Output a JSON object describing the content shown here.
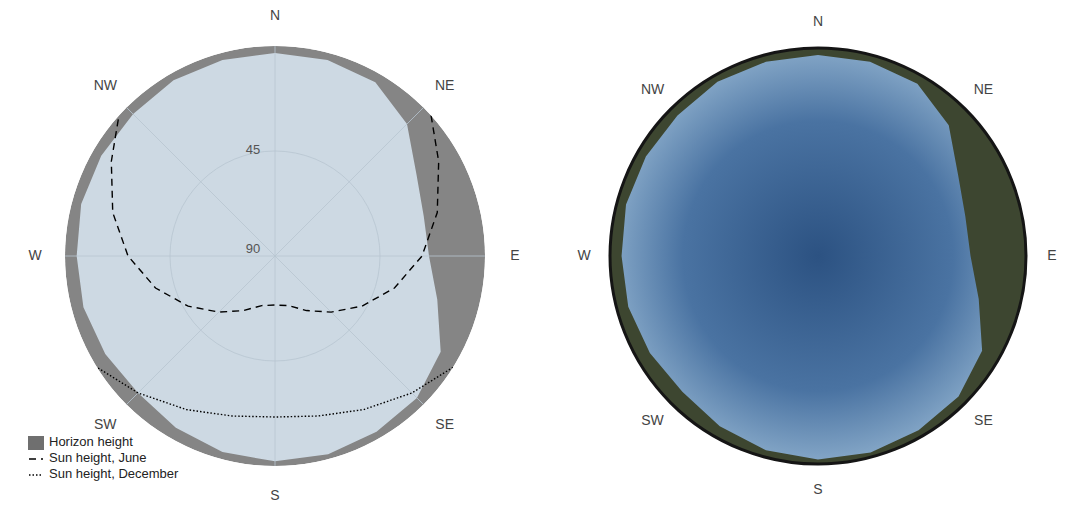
{
  "chart_data": [
    {
      "type": "polar",
      "xlim": [
        0,
        360
      ],
      "xticks": [
        {
          "value": 0,
          "label": "N"
        },
        {
          "value": 45,
          "label": "NE"
        },
        {
          "value": 90,
          "label": "E"
        },
        {
          "value": 135,
          "label": "SE"
        },
        {
          "value": 180,
          "label": "S"
        },
        {
          "value": 225,
          "label": "SW"
        },
        {
          "value": 270,
          "label": "W"
        },
        {
          "value": 315,
          "label": "NW"
        }
      ],
      "ylim": [
        0,
        90
      ],
      "yticks": [
        45,
        90
      ],
      "grid": true,
      "legend": "bottom-left",
      "series": [
        {
          "name": "Horizon height",
          "type": "area",
          "color": "#858585",
          "x": [
            0,
            15,
            30,
            45,
            60,
            75,
            90,
            105,
            120,
            135,
            150,
            165,
            180,
            195,
            210,
            225,
            240,
            255,
            270,
            285,
            300,
            315,
            330,
            345
          ],
          "values": [
            3,
            3,
            4,
            10,
            20,
            24,
            24,
            18,
            8,
            4,
            3,
            2,
            2,
            3,
            5,
            7,
            6,
            5,
            5,
            4,
            4,
            4,
            3,
            3
          ]
        },
        {
          "name": "Sun height, June",
          "type": "line",
          "line_style": "dashed",
          "color": "#000000",
          "x": [
            48,
            60,
            75,
            90,
            105,
            120,
            135,
            150,
            165,
            180,
            195,
            210,
            225,
            240,
            255,
            270,
            285,
            300,
            312
          ],
          "values": [
            0,
            9,
            18,
            27,
            37,
            47,
            56,
            63,
            68,
            69,
            68,
            63,
            56,
            47,
            37,
            27,
            18,
            9,
            0
          ]
        },
        {
          "name": "Sun height, December",
          "type": "line",
          "line_style": "dotted",
          "color": "#000000",
          "x": [
            122,
            135,
            150,
            165,
            180,
            195,
            210,
            225,
            238
          ],
          "values": [
            0,
            7,
            14,
            19,
            21,
            19,
            14,
            7,
            0
          ]
        }
      ]
    },
    {
      "type": "photo",
      "xlim": [
        0,
        360
      ],
      "xticks": [
        {
          "value": 0,
          "label": "N"
        },
        {
          "value": 45,
          "label": "NE"
        },
        {
          "value": 90,
          "label": "E"
        },
        {
          "value": 135,
          "label": "SE"
        },
        {
          "value": 180,
          "label": "S"
        },
        {
          "value": 225,
          "label": "SW"
        },
        {
          "value": 270,
          "label": "W"
        },
        {
          "value": 315,
          "label": "NW"
        }
      ]
    }
  ]
}
